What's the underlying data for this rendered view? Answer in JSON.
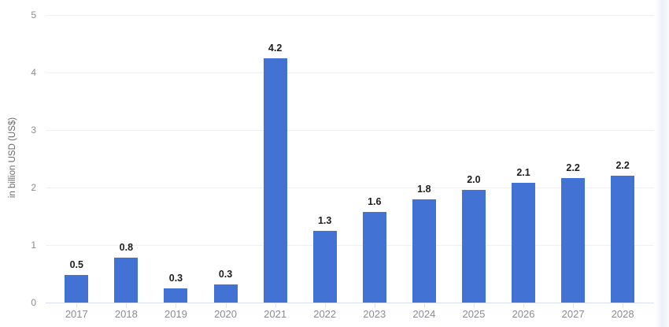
{
  "chart_data": {
    "type": "bar",
    "title": "",
    "xlabel": "",
    "ylabel": "in billion USD (US$)",
    "categories": [
      "2017",
      "2018",
      "2019",
      "2020",
      "2021",
      "2022",
      "2023",
      "2024",
      "2025",
      "2026",
      "2027",
      "2028"
    ],
    "values": [
      0.5,
      0.8,
      0.3,
      0.3,
      4.2,
      1.3,
      1.6,
      1.8,
      2.0,
      2.1,
      2.2,
      2.2
    ],
    "value_labels": [
      "0.5",
      "0.8",
      "0.3",
      "0.3",
      "4.2",
      "1.3",
      "1.6",
      "1.8",
      "2.0",
      "2.1",
      "2.2",
      "2.2"
    ],
    "precise_values": [
      0.48,
      0.78,
      0.25,
      0.32,
      4.24,
      1.25,
      1.58,
      1.8,
      1.96,
      2.08,
      2.16,
      2.2
    ],
    "ylim": [
      0,
      5
    ],
    "yticks": [
      0,
      1,
      2,
      3,
      4,
      5
    ],
    "grid": true,
    "legend": false,
    "data_labels": true,
    "bar_color": "#4273d4",
    "value_label_color": "#1d1d1d",
    "axis_text_color": "#8b8b95",
    "gridline_color": "#f0f0f1",
    "baseline_color": "#d9def0"
  }
}
